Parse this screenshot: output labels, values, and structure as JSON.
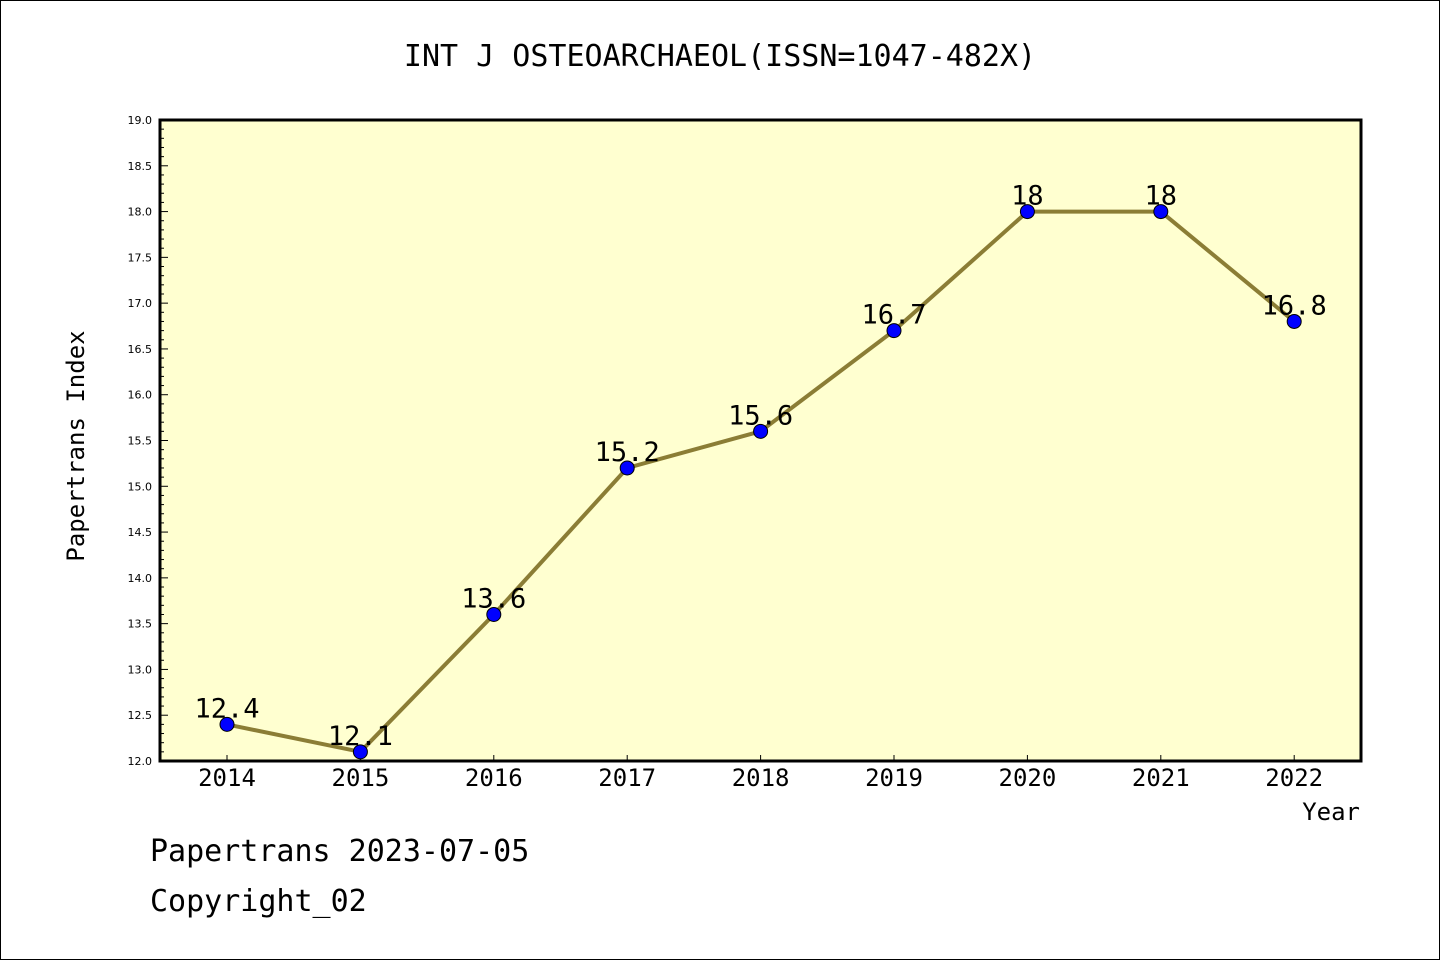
{
  "chart_data": {
    "type": "line",
    "title": "INT J OSTEOARCHAEOL(ISSN=1047-482X)",
    "xlabel": "Year",
    "ylabel": "Papertrans Index",
    "categories": [
      "2014",
      "2015",
      "2016",
      "2017",
      "2018",
      "2019",
      "2020",
      "2021",
      "2022"
    ],
    "values": [
      12.4,
      12.1,
      13.6,
      15.2,
      15.6,
      16.7,
      18,
      18,
      16.8
    ],
    "value_labels": [
      "12.4",
      "12.1",
      "13.6",
      "15.2",
      "15.6",
      "16.7",
      "18",
      "18",
      "16.8"
    ],
    "ylim": [
      12.0,
      19.0
    ],
    "yticks": [
      "12.0",
      "12.5",
      "13.0",
      "13.5",
      "14.0",
      "14.5",
      "15.0",
      "15.5",
      "16.0",
      "16.5",
      "17.0",
      "17.5",
      "18.0",
      "18.5",
      "19.0"
    ],
    "grid": false,
    "line_color": "#8b7d35",
    "marker_color": "#0000ff",
    "plot_background": "#ffffd0"
  },
  "footer": {
    "date_line": "Papertrans 2023-07-05",
    "copyright": "Copyright_02"
  }
}
